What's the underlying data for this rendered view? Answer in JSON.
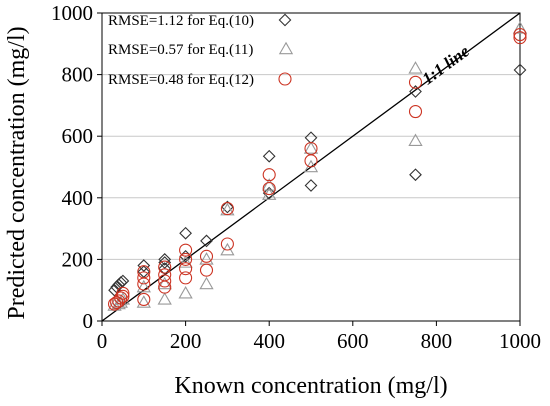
{
  "chart_data": {
    "type": "scatter",
    "xlabel": "Known concentration (mg/l)",
    "ylabel": "Predicted concentration (mg/l)",
    "xlim": [
      0,
      1000
    ],
    "ylim": [
      0,
      1000
    ],
    "xticks": [
      "0",
      "200",
      "400",
      "600",
      "800",
      "1000"
    ],
    "yticks": [
      "0",
      "200",
      "400",
      "600",
      "800",
      "1000"
    ],
    "grid": "horizontal",
    "legend_position": "top-left",
    "reference_line": {
      "label": "1:1 line",
      "from": [
        0,
        0
      ],
      "to": [
        1000,
        1000
      ]
    },
    "series": [
      {
        "name": "RMSE=1.12 for Eq.(10)",
        "marker": "diamond",
        "color": "#333333",
        "points": [
          [
            30,
            100
          ],
          [
            35,
            110
          ],
          [
            40,
            118
          ],
          [
            45,
            125
          ],
          [
            50,
            130
          ],
          [
            100,
            180
          ],
          [
            100,
            160
          ],
          [
            150,
            200
          ],
          [
            150,
            190
          ],
          [
            150,
            170
          ],
          [
            200,
            285
          ],
          [
            200,
            210
          ],
          [
            250,
            260
          ],
          [
            300,
            370
          ],
          [
            400,
            535
          ],
          [
            400,
            415
          ],
          [
            500,
            595
          ],
          [
            500,
            440
          ],
          [
            750,
            745
          ],
          [
            750,
            475
          ],
          [
            1000,
            815
          ]
        ]
      },
      {
        "name": "RMSE=0.57 for Eq.(11)",
        "marker": "triangle",
        "color": "#999999",
        "points": [
          [
            30,
            50
          ],
          [
            40,
            55
          ],
          [
            45,
            60
          ],
          [
            50,
            70
          ],
          [
            100,
            60
          ],
          [
            100,
            110
          ],
          [
            150,
            70
          ],
          [
            150,
            120
          ],
          [
            200,
            90
          ],
          [
            200,
            190
          ],
          [
            250,
            120
          ],
          [
            250,
            200
          ],
          [
            300,
            230
          ],
          [
            300,
            360
          ],
          [
            400,
            410
          ],
          [
            400,
            440
          ],
          [
            500,
            500
          ],
          [
            500,
            560
          ],
          [
            750,
            820
          ],
          [
            750,
            585
          ],
          [
            1000,
            950
          ]
        ]
      },
      {
        "name": "RMSE=0.48 for Eq.(12)",
        "marker": "circle",
        "color": "#cc3322",
        "points": [
          [
            30,
            55
          ],
          [
            35,
            60
          ],
          [
            40,
            65
          ],
          [
            45,
            75
          ],
          [
            50,
            80
          ],
          [
            50,
            90
          ],
          [
            100,
            70
          ],
          [
            100,
            120
          ],
          [
            100,
            140
          ],
          [
            100,
            160
          ],
          [
            150,
            110
          ],
          [
            150,
            130
          ],
          [
            150,
            150
          ],
          [
            150,
            175
          ],
          [
            200,
            140
          ],
          [
            200,
            170
          ],
          [
            200,
            200
          ],
          [
            200,
            230
          ],
          [
            250,
            165
          ],
          [
            250,
            210
          ],
          [
            300,
            250
          ],
          [
            300,
            365
          ],
          [
            400,
            430
          ],
          [
            400,
            475
          ],
          [
            500,
            520
          ],
          [
            500,
            560
          ],
          [
            750,
            680
          ],
          [
            750,
            775
          ],
          [
            1000,
            920
          ],
          [
            1000,
            930
          ]
        ]
      }
    ]
  }
}
